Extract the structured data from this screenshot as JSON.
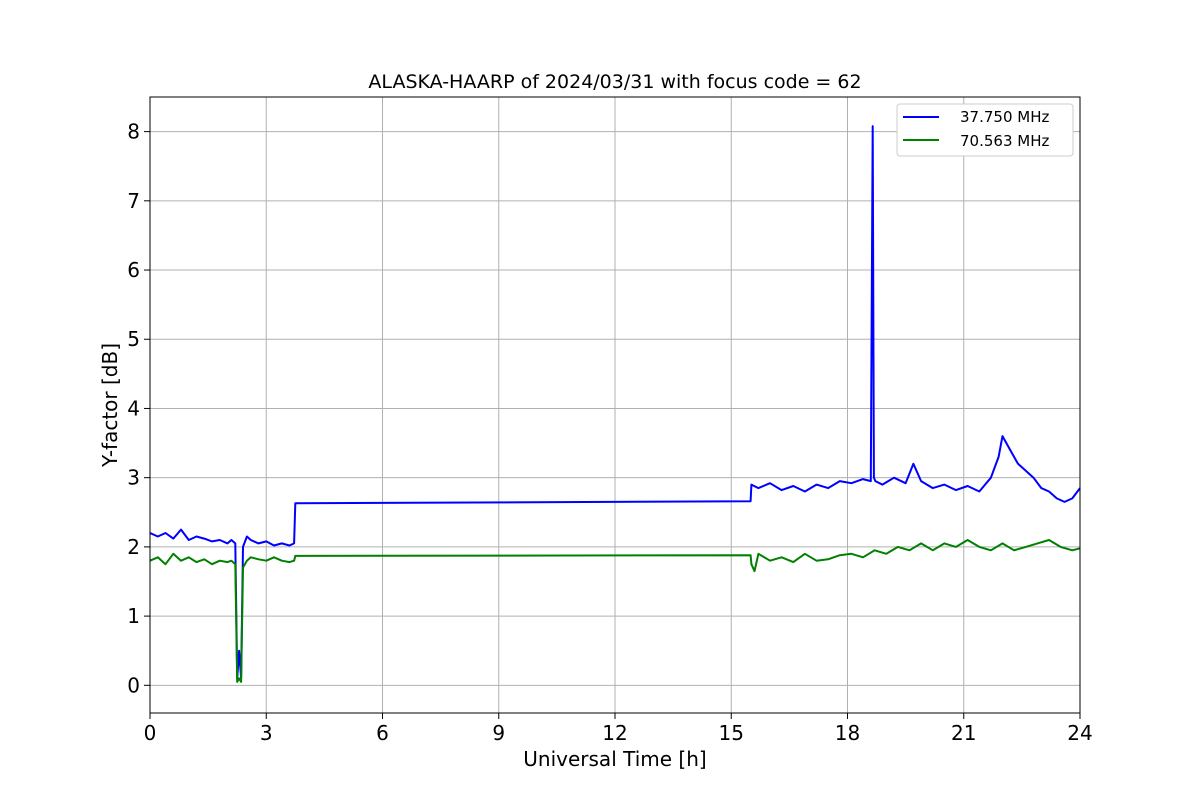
{
  "chart_data": {
    "type": "line",
    "title": "ALASKA-HAARP of 2024/03/31 with focus code = 62",
    "xlabel": "Universal Time [h]",
    "ylabel": "Y-factor [dB]",
    "xlim": [
      0,
      24
    ],
    "ylim": [
      -0.4,
      8.5
    ],
    "xticks": [
      0,
      3,
      6,
      9,
      12,
      15,
      18,
      21,
      24
    ],
    "xtick_labels": [
      "0",
      "3",
      "6",
      "9",
      "12",
      "15",
      "18",
      "21",
      "24"
    ],
    "yticks": [
      0,
      1,
      2,
      3,
      4,
      5,
      6,
      7,
      8
    ],
    "ytick_labels": [
      "0",
      "1",
      "2",
      "3",
      "4",
      "5",
      "6",
      "7",
      "8"
    ],
    "grid": true,
    "legend_position": "top-right",
    "series": [
      {
        "name": "37.750 MHz",
        "color": "#0000ff",
        "x": [
          0.0,
          0.2,
          0.4,
          0.6,
          0.8,
          1.0,
          1.2,
          1.4,
          1.6,
          1.8,
          2.0,
          2.1,
          2.2,
          2.25,
          2.3,
          2.35,
          2.4,
          2.5,
          2.6,
          2.8,
          3.0,
          3.2,
          3.4,
          3.6,
          3.72,
          3.75,
          15.5,
          15.52,
          15.7,
          16.0,
          16.3,
          16.6,
          16.9,
          17.2,
          17.5,
          17.8,
          18.1,
          18.4,
          18.6,
          18.65,
          18.68,
          18.72,
          18.9,
          19.2,
          19.5,
          19.7,
          19.9,
          20.2,
          20.5,
          20.8,
          21.1,
          21.4,
          21.7,
          21.9,
          22.0,
          22.2,
          22.4,
          22.6,
          22.8,
          23.0,
          23.2,
          23.4,
          23.6,
          23.8,
          24.0
        ],
        "values": [
          2.2,
          2.15,
          2.2,
          2.12,
          2.25,
          2.1,
          2.15,
          2.12,
          2.08,
          2.1,
          2.05,
          2.1,
          2.05,
          0.1,
          0.5,
          0.1,
          2.0,
          2.15,
          2.1,
          2.05,
          2.08,
          2.02,
          2.05,
          2.02,
          2.05,
          2.63,
          2.66,
          2.9,
          2.85,
          2.92,
          2.82,
          2.88,
          2.8,
          2.9,
          2.85,
          2.95,
          2.92,
          2.98,
          2.95,
          8.08,
          3.0,
          2.95,
          2.9,
          3.0,
          2.92,
          3.2,
          2.95,
          2.85,
          2.9,
          2.82,
          2.88,
          2.8,
          3.0,
          3.3,
          3.6,
          3.4,
          3.2,
          3.1,
          3.0,
          2.85,
          2.8,
          2.7,
          2.65,
          2.7,
          2.85
        ]
      },
      {
        "name": "70.563 MHz",
        "color": "#008000",
        "x": [
          0.0,
          0.2,
          0.4,
          0.6,
          0.8,
          1.0,
          1.2,
          1.4,
          1.6,
          1.8,
          2.0,
          2.1,
          2.2,
          2.25,
          2.3,
          2.35,
          2.4,
          2.5,
          2.6,
          2.8,
          3.0,
          3.2,
          3.4,
          3.6,
          3.72,
          3.75,
          15.5,
          15.52,
          15.6,
          15.7,
          16.0,
          16.3,
          16.6,
          16.9,
          17.2,
          17.5,
          17.8,
          18.1,
          18.4,
          18.7,
          19.0,
          19.3,
          19.6,
          19.9,
          20.2,
          20.5,
          20.8,
          21.1,
          21.4,
          21.7,
          22.0,
          22.3,
          22.6,
          22.9,
          23.2,
          23.5,
          23.8,
          24.0
        ],
        "values": [
          1.8,
          1.85,
          1.75,
          1.9,
          1.8,
          1.85,
          1.78,
          1.82,
          1.75,
          1.8,
          1.78,
          1.8,
          1.75,
          0.05,
          0.1,
          0.05,
          1.7,
          1.8,
          1.85,
          1.82,
          1.8,
          1.85,
          1.8,
          1.78,
          1.8,
          1.87,
          1.88,
          1.75,
          1.65,
          1.9,
          1.8,
          1.85,
          1.78,
          1.9,
          1.8,
          1.82,
          1.88,
          1.9,
          1.85,
          1.95,
          1.9,
          2.0,
          1.95,
          2.05,
          1.95,
          2.05,
          2.0,
          2.1,
          2.0,
          1.95,
          2.05,
          1.95,
          2.0,
          2.05,
          2.1,
          2.0,
          1.95,
          1.98
        ]
      }
    ]
  }
}
